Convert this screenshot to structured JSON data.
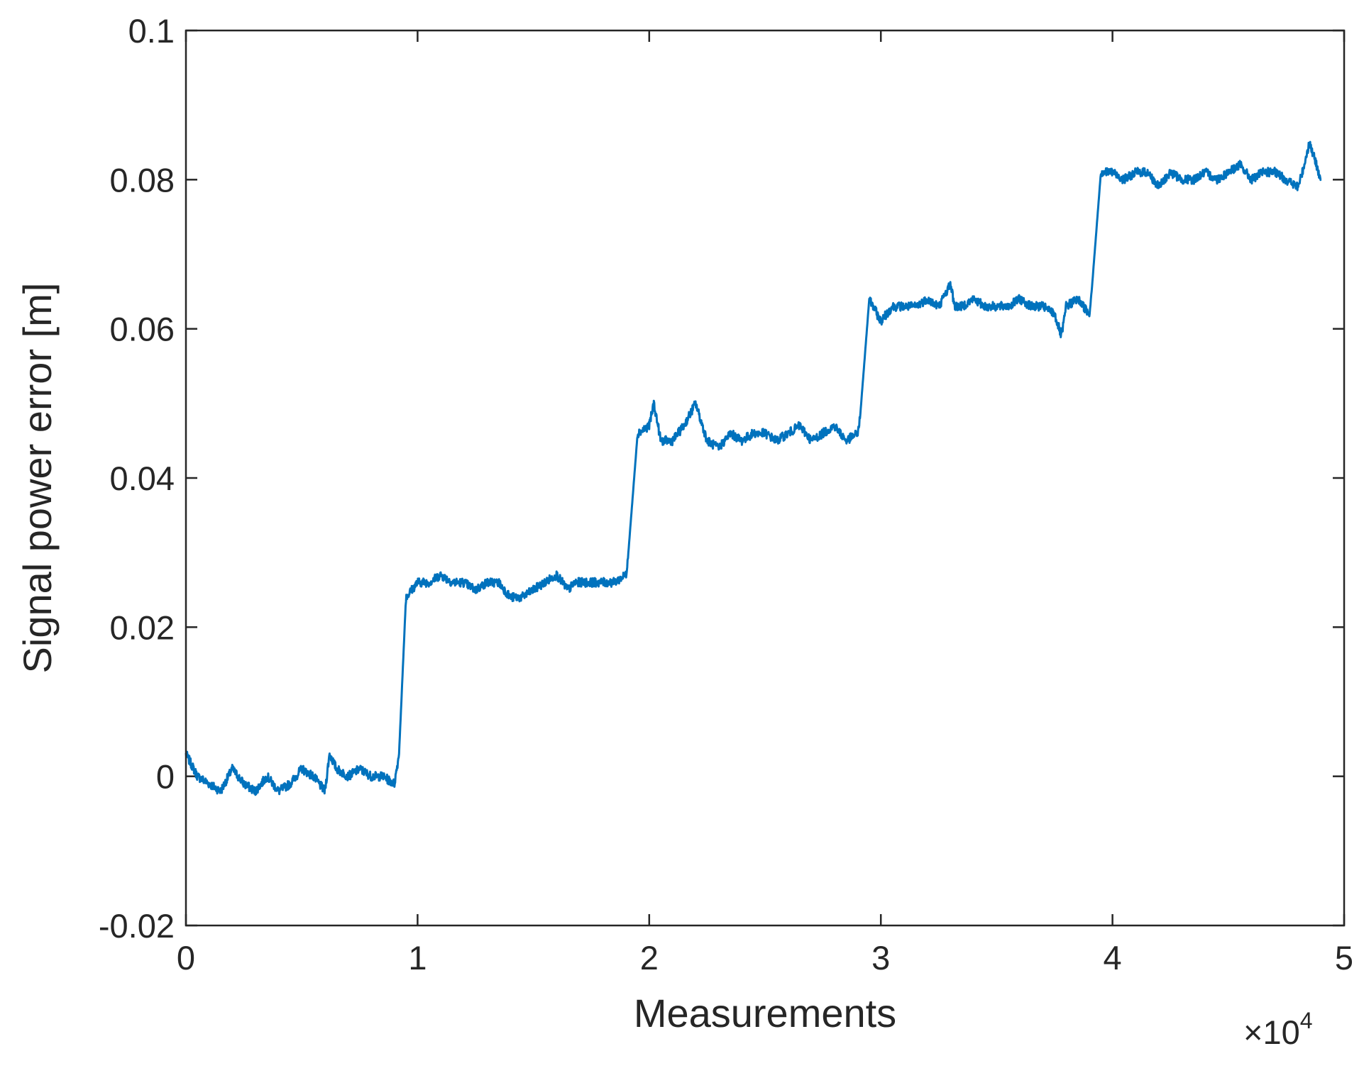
{
  "chart_data": {
    "type": "line",
    "title": "",
    "xlabel": "Measurements",
    "ylabel": "Signal power error [m]",
    "x_exponent_label": "×10",
    "x_exponent_power": "4",
    "xlim": [
      0,
      5
    ],
    "ylim": [
      -0.02,
      0.1
    ],
    "x_ticks": [
      0,
      1,
      2,
      3,
      4,
      5
    ],
    "x_tick_labels": [
      "0",
      "1",
      "2",
      "3",
      "4",
      "5"
    ],
    "y_ticks": [
      -0.02,
      0,
      0.02,
      0.04,
      0.06,
      0.08,
      0.1
    ],
    "y_tick_labels": [
      "-0.02",
      "0",
      "0.02",
      "0.04",
      "0.06",
      "0.08",
      "0.1"
    ],
    "grid": false,
    "line_color": "#0072BD",
    "series": [
      {
        "x": [
          0,
          0.05,
          0.1,
          0.15,
          0.2,
          0.25,
          0.3,
          0.35,
          0.4,
          0.45,
          0.5,
          0.55,
          0.6,
          0.62,
          0.65,
          0.7,
          0.75,
          0.8,
          0.85,
          0.9,
          0.92,
          0.95,
          1.0,
          1.05,
          1.1,
          1.15,
          1.2,
          1.25,
          1.3,
          1.35,
          1.4,
          1.45,
          1.5,
          1.55,
          1.6,
          1.65,
          1.68,
          1.72,
          1.76,
          1.8,
          1.85,
          1.9,
          1.91,
          1.95,
          2.0,
          2.02,
          2.05,
          2.1,
          2.15,
          2.2,
          2.25,
          2.3,
          2.35,
          2.4,
          2.45,
          2.5,
          2.55,
          2.6,
          2.65,
          2.7,
          2.75,
          2.8,
          2.85,
          2.9,
          2.91,
          2.95,
          3.0,
          3.05,
          3.1,
          3.15,
          3.2,
          3.25,
          3.3,
          3.32,
          3.35,
          3.4,
          3.45,
          3.5,
          3.55,
          3.6,
          3.65,
          3.7,
          3.75,
          3.78,
          3.8,
          3.85,
          3.9,
          3.91,
          3.95,
          4.0,
          4.05,
          4.1,
          4.15,
          4.2,
          4.25,
          4.3,
          4.35,
          4.4,
          4.45,
          4.5,
          4.55,
          4.6,
          4.65,
          4.7,
          4.75,
          4.8,
          4.82,
          4.85,
          4.9
        ],
        "y": [
          0.003,
          0.0,
          -0.001,
          -0.002,
          0.001,
          -0.001,
          -0.002,
          0.0,
          -0.002,
          -0.001,
          0.001,
          0.0,
          -0.002,
          0.003,
          0.001,
          0.0,
          0.001,
          0.0,
          0.0,
          -0.001,
          0.003,
          0.024,
          0.026,
          0.026,
          0.027,
          0.026,
          0.026,
          0.025,
          0.026,
          0.026,
          0.024,
          0.024,
          0.025,
          0.026,
          0.027,
          0.025,
          0.026,
          0.026,
          0.026,
          0.026,
          0.026,
          0.027,
          0.03,
          0.046,
          0.047,
          0.05,
          0.045,
          0.045,
          0.047,
          0.05,
          0.045,
          0.044,
          0.046,
          0.045,
          0.046,
          0.046,
          0.045,
          0.046,
          0.047,
          0.045,
          0.046,
          0.047,
          0.045,
          0.046,
          0.048,
          0.064,
          0.061,
          0.063,
          0.063,
          0.063,
          0.064,
          0.063,
          0.066,
          0.063,
          0.063,
          0.064,
          0.063,
          0.063,
          0.063,
          0.064,
          0.063,
          0.063,
          0.062,
          0.059,
          0.063,
          0.064,
          0.062,
          0.065,
          0.081,
          0.081,
          0.08,
          0.081,
          0.081,
          0.079,
          0.081,
          0.08,
          0.08,
          0.081,
          0.08,
          0.081,
          0.082,
          0.08,
          0.081,
          0.081,
          0.08,
          0.079,
          0.081,
          0.085,
          0.08
        ]
      }
    ]
  }
}
